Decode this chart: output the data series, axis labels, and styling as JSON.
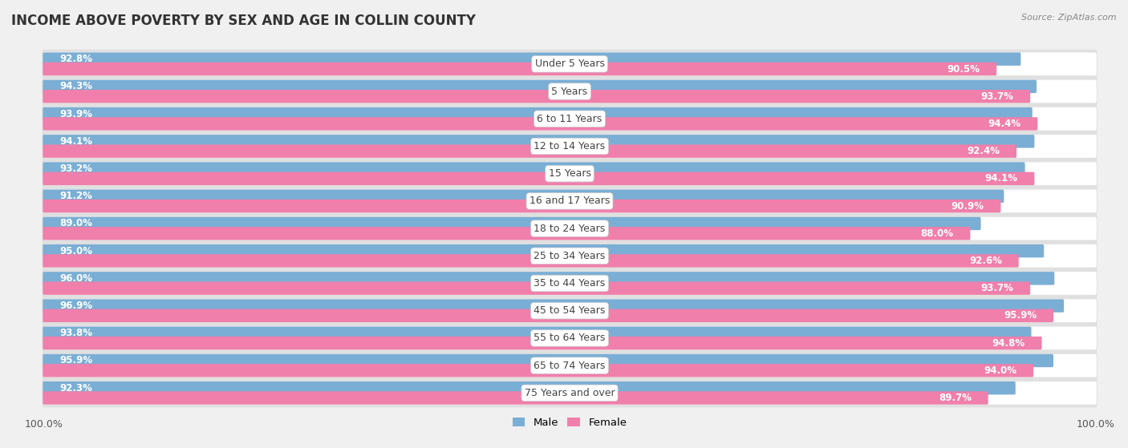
{
  "title": "INCOME ABOVE POVERTY BY SEX AND AGE IN COLLIN COUNTY",
  "source": "Source: ZipAtlas.com",
  "categories": [
    "Under 5 Years",
    "5 Years",
    "6 to 11 Years",
    "12 to 14 Years",
    "15 Years",
    "16 and 17 Years",
    "18 to 24 Years",
    "25 to 34 Years",
    "35 to 44 Years",
    "45 to 54 Years",
    "55 to 64 Years",
    "65 to 74 Years",
    "75 Years and over"
  ],
  "male_values": [
    92.8,
    94.3,
    93.9,
    94.1,
    93.2,
    91.2,
    89.0,
    95.0,
    96.0,
    96.9,
    93.8,
    95.9,
    92.3
  ],
  "female_values": [
    90.5,
    93.7,
    94.4,
    92.4,
    94.1,
    90.9,
    88.0,
    92.6,
    93.7,
    95.9,
    94.8,
    94.0,
    89.7
  ],
  "male_color": "#7aaed4",
  "female_color": "#f07fab",
  "male_color_light": "#b8d4eb",
  "female_color_light": "#f9c0d4",
  "male_label": "Male",
  "female_label": "Female",
  "bg_color": "#f0f0f0",
  "row_bg_color": "#e0e0e0",
  "bar_bg_color": "#ffffff",
  "title_fontsize": 12,
  "label_fontsize": 9,
  "value_fontsize": 8.5,
  "source_fontsize": 8
}
